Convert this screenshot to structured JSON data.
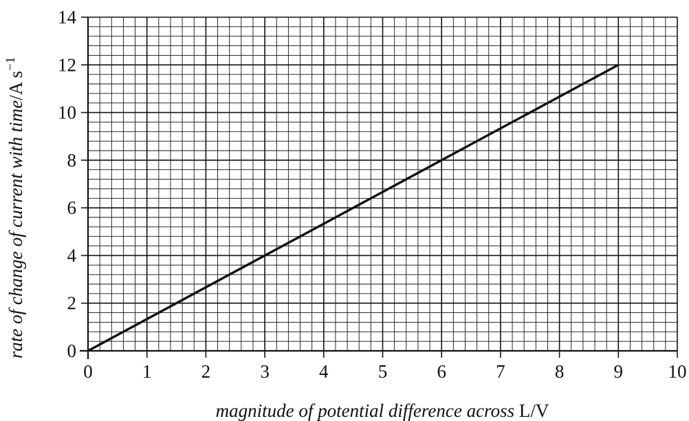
{
  "chart_data": {
    "type": "line",
    "title": "",
    "xlabel_italic": "magnitude of potential difference across ",
    "xlabel_upright": "L/V",
    "ylabel_italic": "rate of change of current with time",
    "ylabel_upright": "/A s",
    "ylabel_sup": "−1",
    "xlim": [
      0,
      10
    ],
    "ylim": [
      0,
      14
    ],
    "x_ticks": [
      0,
      1,
      2,
      3,
      4,
      5,
      6,
      7,
      8,
      9,
      10
    ],
    "y_ticks": [
      0,
      2,
      4,
      6,
      8,
      10,
      12,
      14
    ],
    "grid": true,
    "grid_minor_divisions": 5,
    "series": [
      {
        "x": [
          0,
          9
        ],
        "y": [
          0,
          12
        ]
      }
    ],
    "colors": {
      "line": "#111111",
      "grid": "#111111",
      "background": "#ffffff"
    }
  }
}
